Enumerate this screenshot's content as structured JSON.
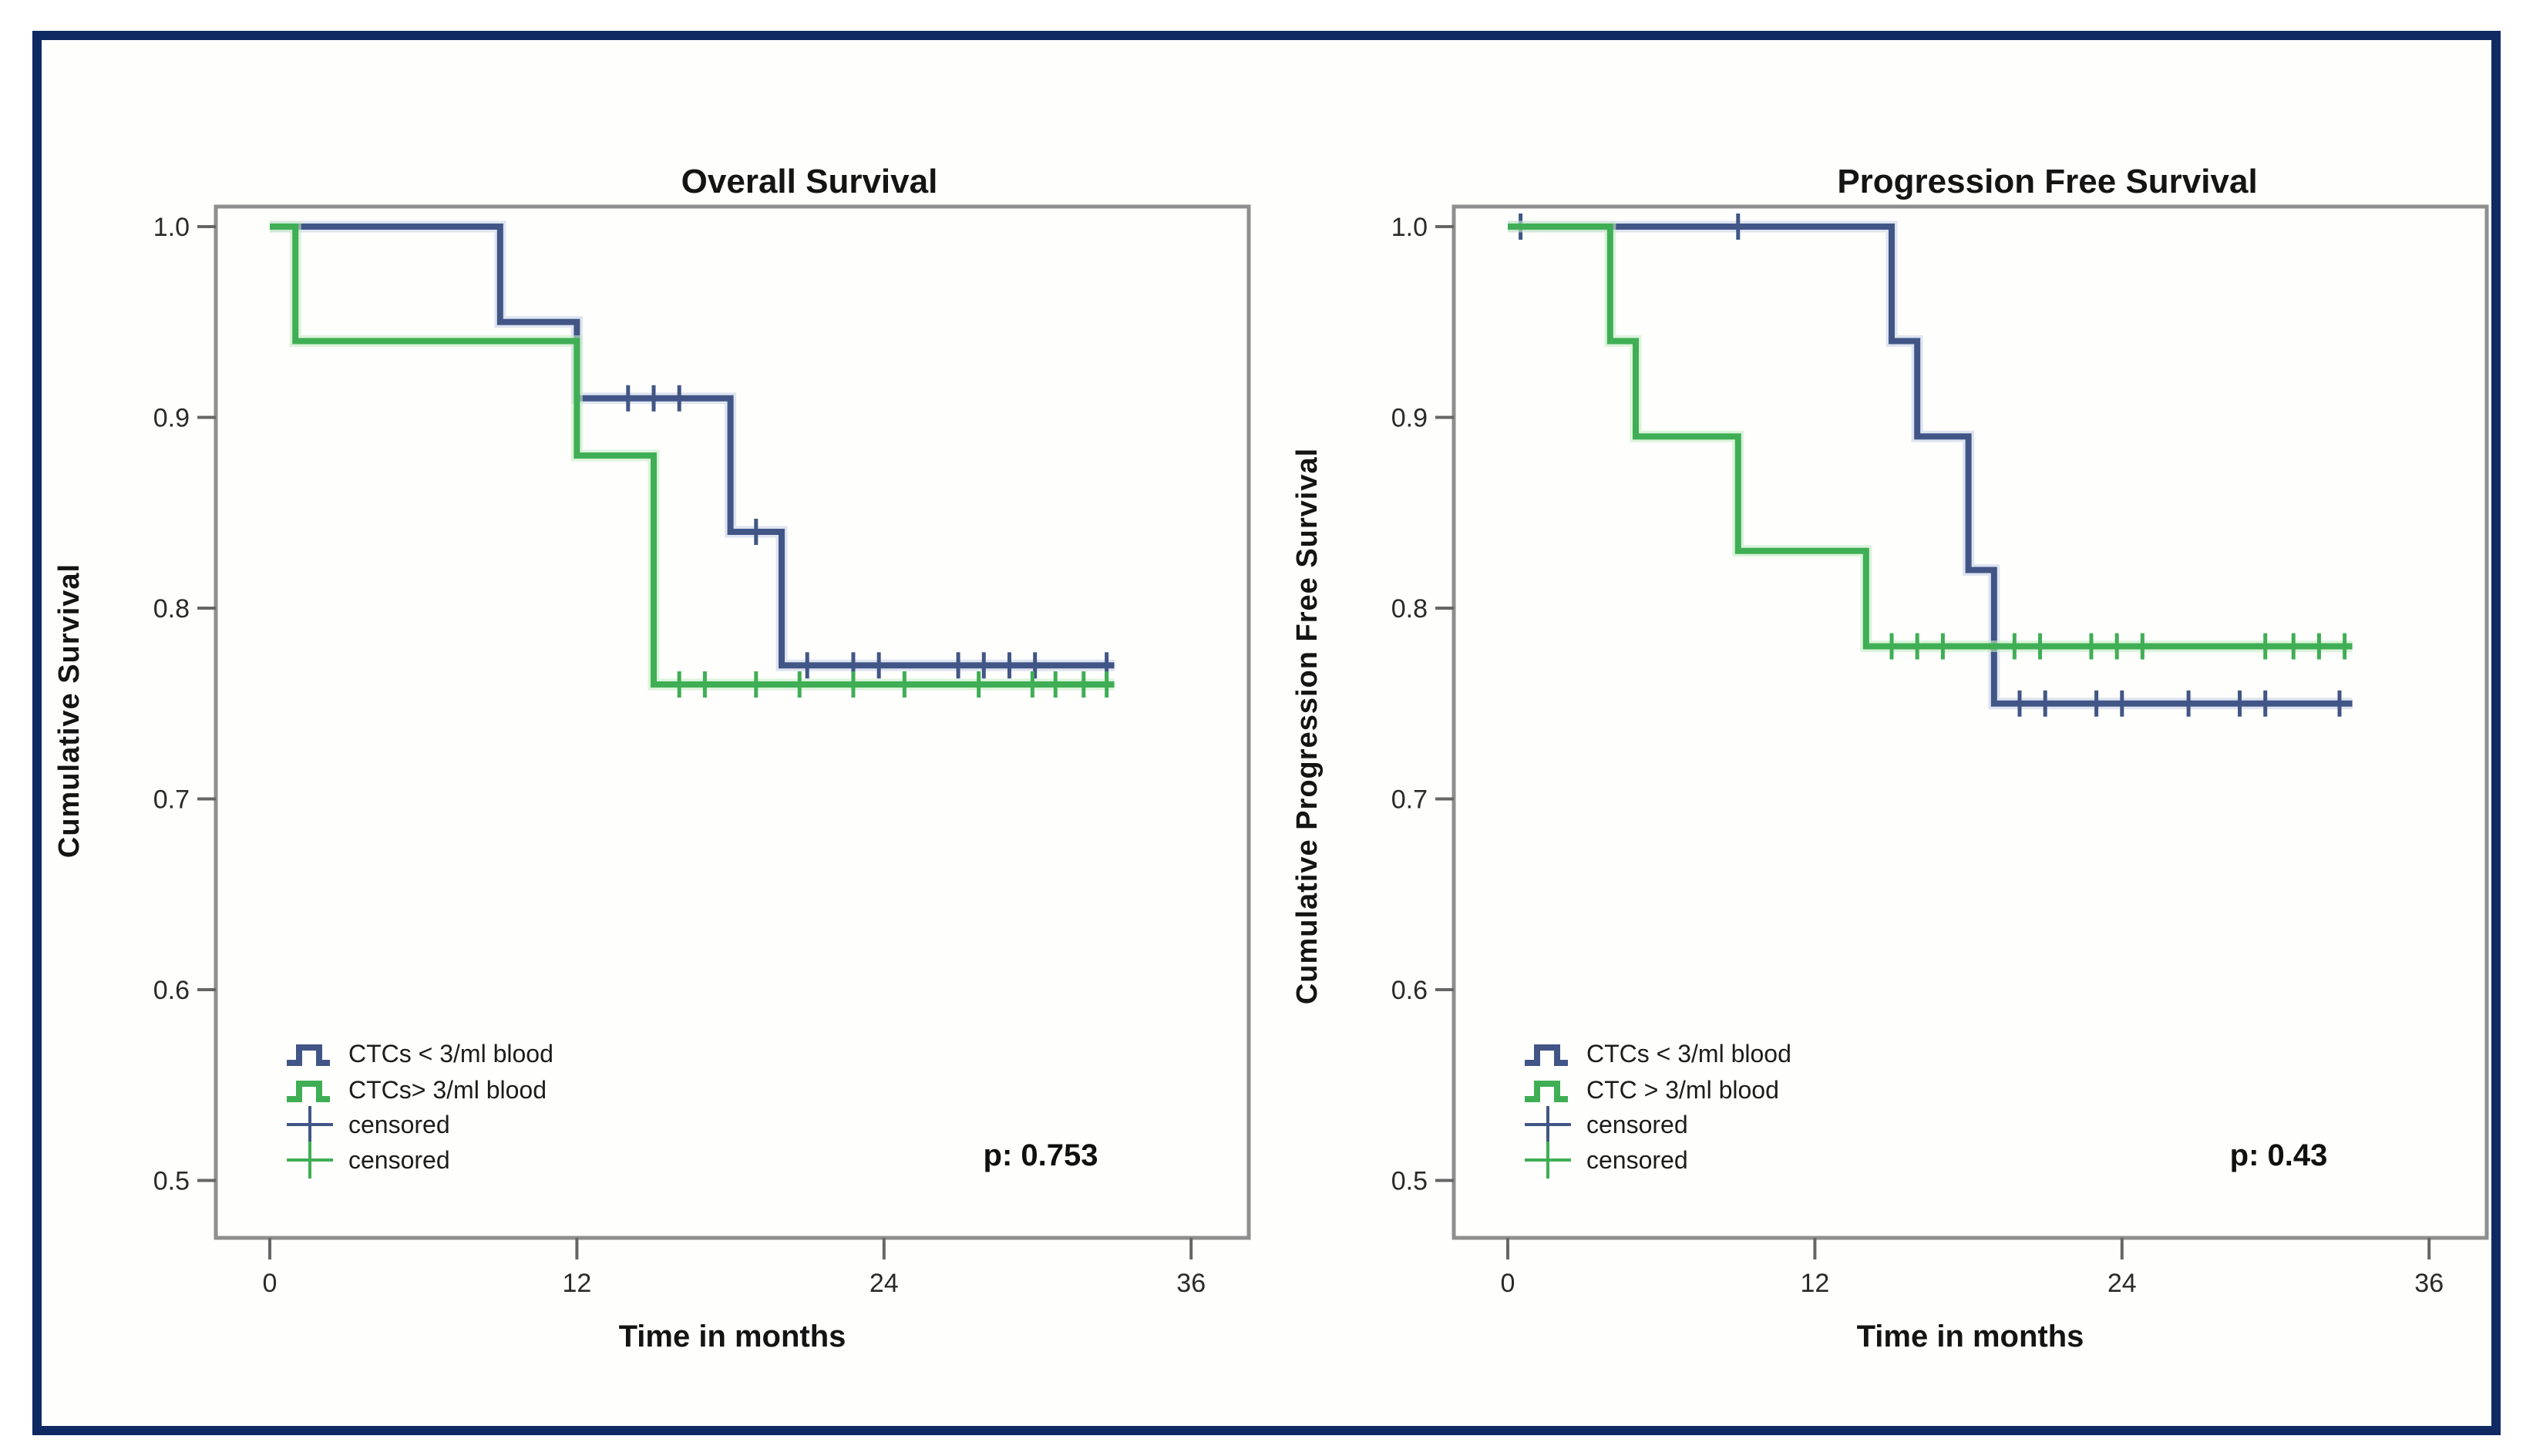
{
  "figure": {
    "border_color": "#0f2a63",
    "background_color": "#fefefc",
    "colors": {
      "blue": "#415686",
      "blue_halo": "#c9d2ea",
      "green": "#3fae54",
      "green_halo": "#c4ebc6",
      "frame_gray": "#8f8f8f",
      "tick_gray": "#666666"
    }
  },
  "chart_data": [
    {
      "type": "line",
      "subtype": "kaplan-meier-step",
      "title": "Overall Survival",
      "xlabel": "Time in months",
      "ylabel": "Cumulative Survival",
      "p_value": "p: 0.753",
      "xlim": [
        0,
        36
      ],
      "ylim": [
        0.5,
        1.0
      ],
      "grid": false,
      "x_ticks": [
        "0",
        "12",
        "24",
        "36"
      ],
      "x_tick_values": [
        0,
        12,
        24,
        36
      ],
      "y_ticks": [
        "1.0",
        "0.9",
        "0.8",
        "0.7",
        "0.6",
        "0.5"
      ],
      "y_tick_values": [
        1.0,
        0.9,
        0.8,
        0.7,
        0.6,
        0.5
      ],
      "legend_position": "lower-left-inside",
      "legend": [
        {
          "label": "CTCs < 3/ml blood",
          "marker": "step",
          "series": "blue"
        },
        {
          "label": "CTCs> 3/ml blood",
          "marker": "step",
          "series": "green"
        },
        {
          "label": "censored",
          "marker": "plus",
          "series": "blue"
        },
        {
          "label": "censored",
          "marker": "plus",
          "series": "green"
        }
      ],
      "series": [
        {
          "name": "CTCs < 3/ml blood",
          "color": "blue",
          "start_value": 1.0,
          "drops": [
            [
              9,
              0.95
            ],
            [
              12,
              0.91
            ],
            [
              18,
              0.84
            ],
            [
              20,
              0.77
            ]
          ],
          "end_time": 33,
          "censored": [
            [
              14,
              0.91
            ],
            [
              15,
              0.91
            ],
            [
              16,
              0.91
            ],
            [
              19,
              0.84
            ],
            [
              21,
              0.77
            ],
            [
              22.8,
              0.77
            ],
            [
              23.8,
              0.77
            ],
            [
              26.9,
              0.77
            ],
            [
              27.9,
              0.77
            ],
            [
              28.9,
              0.77
            ],
            [
              29.9,
              0.77
            ],
            [
              32.7,
              0.77
            ]
          ]
        },
        {
          "name": "CTCs> 3/ml blood",
          "color": "green",
          "start_value": 1.0,
          "drops": [
            [
              1,
              0.94
            ],
            [
              12,
              0.88
            ],
            [
              15,
              0.76
            ]
          ],
          "end_time": 33,
          "censored": [
            [
              16,
              0.76
            ],
            [
              17,
              0.76
            ],
            [
              19,
              0.76
            ],
            [
              20.7,
              0.76
            ],
            [
              22.8,
              0.76
            ],
            [
              24.8,
              0.76
            ],
            [
              27.7,
              0.76
            ],
            [
              29.8,
              0.76
            ],
            [
              30.7,
              0.76
            ],
            [
              31.8,
              0.76
            ],
            [
              32.7,
              0.76
            ]
          ]
        }
      ]
    },
    {
      "type": "line",
      "subtype": "kaplan-meier-step",
      "title": "Progression Free Survival",
      "xlabel": "Time in months",
      "ylabel": "Cumulative Progression Free Survival",
      "p_value": "p: 0.43",
      "xlim": [
        0,
        36
      ],
      "ylim": [
        0.5,
        1.0
      ],
      "grid": false,
      "x_ticks": [
        "0",
        "12",
        "24",
        "36"
      ],
      "x_tick_values": [
        0,
        12,
        24,
        36
      ],
      "y_ticks": [
        "1.0",
        "0.9",
        "0.8",
        "0.7",
        "0.6",
        "0.5"
      ],
      "y_tick_values": [
        1.0,
        0.9,
        0.8,
        0.7,
        0.6,
        0.5
      ],
      "legend_position": "lower-left-inside",
      "legend": [
        {
          "label": "CTCs < 3/ml blood",
          "marker": "step",
          "series": "blue"
        },
        {
          "label": "CTC > 3/ml blood",
          "marker": "step",
          "series": "green"
        },
        {
          "label": "censored",
          "marker": "plus",
          "series": "blue"
        },
        {
          "label": "censored",
          "marker": "plus",
          "series": "green"
        }
      ],
      "series": [
        {
          "name": "CTCs < 3/ml blood",
          "color": "blue",
          "start_value": 1.0,
          "drops": [
            [
              15,
              0.94
            ],
            [
              16,
              0.89
            ],
            [
              18,
              0.82
            ],
            [
              19,
              0.75
            ]
          ],
          "end_time": 33,
          "censored": [
            [
              0.5,
              1.0
            ],
            [
              9,
              1.0
            ],
            [
              20,
              0.75
            ],
            [
              21,
              0.75
            ],
            [
              23,
              0.75
            ],
            [
              24,
              0.75
            ],
            [
              26.6,
              0.75
            ],
            [
              28.6,
              0.75
            ],
            [
              29.6,
              0.75
            ],
            [
              32.5,
              0.75
            ]
          ]
        },
        {
          "name": "CTC > 3/ml blood",
          "color": "green",
          "start_value": 1.0,
          "drops": [
            [
              4,
              0.94
            ],
            [
              5,
              0.89
            ],
            [
              9,
              0.83
            ],
            [
              14,
              0.78
            ]
          ],
          "end_time": 33,
          "censored": [
            [
              15,
              0.78
            ],
            [
              16,
              0.78
            ],
            [
              17,
              0.78
            ],
            [
              19.8,
              0.78
            ],
            [
              20.8,
              0.78
            ],
            [
              22.8,
              0.78
            ],
            [
              23.8,
              0.78
            ],
            [
              24.8,
              0.78
            ],
            [
              29.6,
              0.78
            ],
            [
              30.7,
              0.78
            ],
            [
              31.7,
              0.78
            ],
            [
              32.7,
              0.78
            ]
          ]
        }
      ]
    }
  ]
}
